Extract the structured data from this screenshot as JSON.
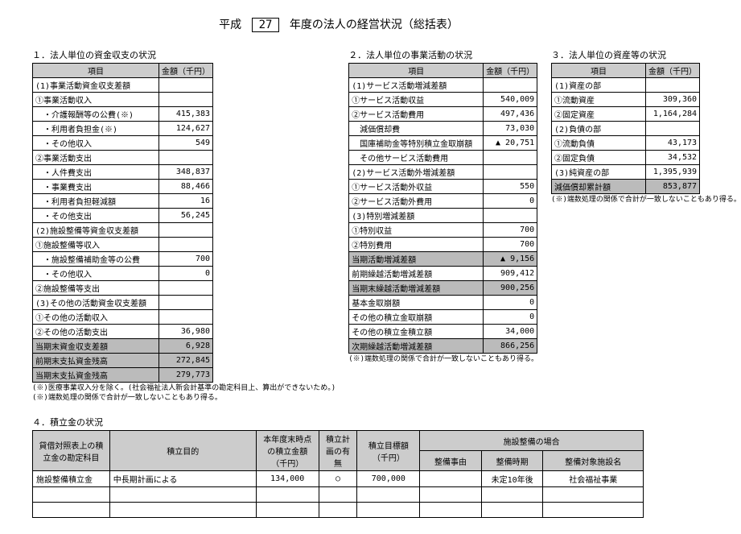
{
  "title": {
    "prefix": "平成",
    "year": "27",
    "suffix": "年度の法人の経営状況（総括表）"
  },
  "section1": {
    "heading": "１．法人単位の資金収支の状況",
    "col1": "項目",
    "col2": "金額（千円）",
    "rows": [
      {
        "label": "(1)事業活動資金収支差額",
        "val": "",
        "shade": false
      },
      {
        "label": "①事業活動収入",
        "val": "",
        "shade": false
      },
      {
        "label": "　・介護報酬等の公費(※)",
        "val": "415,383",
        "shade": false
      },
      {
        "label": "　・利用者負担金(※)",
        "val": "124,627",
        "shade": false
      },
      {
        "label": "　・その他収入",
        "val": "549",
        "shade": false
      },
      {
        "label": "②事業活動支出",
        "val": "",
        "shade": false
      },
      {
        "label": "　・人件費支出",
        "val": "348,837",
        "shade": false
      },
      {
        "label": "　・事業費支出",
        "val": "88,466",
        "shade": false
      },
      {
        "label": "　・利用者負担軽減額",
        "val": "16",
        "shade": false
      },
      {
        "label": "　・その他支出",
        "val": "56,245",
        "shade": false
      },
      {
        "label": "(2)施設整備等資金収支差額",
        "val": "",
        "shade": false
      },
      {
        "label": "①施設整備等収入",
        "val": "",
        "shade": false
      },
      {
        "label": "　・施設整備補助金等の公費",
        "val": "700",
        "shade": false
      },
      {
        "label": "　・その他収入",
        "val": "0",
        "shade": false
      },
      {
        "label": "②施設整備等支出",
        "val": "",
        "shade": false
      },
      {
        "label": "(3)その他の活動資金収支差額",
        "val": "",
        "shade": false
      },
      {
        "label": "①その他の活動収入",
        "val": "",
        "shade": false
      },
      {
        "label": "②その他の活動支出",
        "val": "36,980",
        "shade": false
      },
      {
        "label": "当期末資金収支差額",
        "val": "6,928",
        "shade": true
      },
      {
        "label": "前期末支払資金残高",
        "val": "272,845",
        "shade": true
      },
      {
        "label": "当期末支払資金残高",
        "val": "279,773",
        "shade": true
      }
    ],
    "notes": [
      "(※)医療事業収入分を除く。(社会福祉法人新会計基準の勘定科目上、算出ができないため。)",
      "(※)端数処理の関係で合計が一致しないこともあり得る。"
    ]
  },
  "section2": {
    "heading": "２．法人単位の事業活動の状況",
    "col1": "項目",
    "col2": "金額（千円）",
    "rows": [
      {
        "label": "(1)サービス活動増減差額",
        "val": "",
        "shade": false
      },
      {
        "label": "①サービス活動収益",
        "val": "540,009",
        "shade": false
      },
      {
        "label": "②サービス活動費用",
        "val": "497,436",
        "shade": false
      },
      {
        "label": "　減価償却費",
        "val": "73,030",
        "shade": false
      },
      {
        "label": "　国庫補助金等特別積立金取崩額",
        "val": "▲ 20,751",
        "shade": false
      },
      {
        "label": "　その他サービス活動費用",
        "val": "",
        "shade": false
      },
      {
        "label": "(2)サービス活動外増減差額",
        "val": "",
        "shade": false
      },
      {
        "label": "①サービス活動外収益",
        "val": "550",
        "shade": false
      },
      {
        "label": "②サービス活動外費用",
        "val": "0",
        "shade": false
      },
      {
        "label": "(3)特別増減差額",
        "val": "",
        "shade": false
      },
      {
        "label": "①特別収益",
        "val": "700",
        "shade": false
      },
      {
        "label": "②特別費用",
        "val": "700",
        "shade": false
      },
      {
        "label": "当期活動増減差額",
        "val": "▲ 9,156",
        "shade": true
      },
      {
        "label": "前期繰越活動増減差額",
        "val": "909,412",
        "shade": false
      },
      {
        "label": "当期末繰越活動増減差額",
        "val": "900,256",
        "shade": true
      },
      {
        "label": "基本金取崩額",
        "val": "0",
        "shade": false
      },
      {
        "label": "その他の積立金取崩額",
        "val": "0",
        "shade": false
      },
      {
        "label": "その他の積立金積立額",
        "val": "34,000",
        "shade": false
      },
      {
        "label": "次期繰越活動増減差額",
        "val": "866,256",
        "shade": true
      }
    ],
    "note": "(※)端数処理の関係で合計が一致しないこともあり得る。"
  },
  "section3": {
    "heading": "３．法人単位の資産等の状況",
    "col1": "項目",
    "col2": "金額（千円）",
    "rows": [
      {
        "label": "(1)資産の部",
        "val": "",
        "shade": false
      },
      {
        "label": "①流動資産",
        "val": "309,360",
        "shade": false
      },
      {
        "label": "②固定資産",
        "val": "1,164,284",
        "shade": false
      },
      {
        "label": "(2)負債の部",
        "val": "",
        "shade": false
      },
      {
        "label": "①流動負債",
        "val": "43,173",
        "shade": false
      },
      {
        "label": "②固定負債",
        "val": "34,532",
        "shade": false
      },
      {
        "label": "(3)純資産の部",
        "val": "1,395,939",
        "shade": false
      },
      {
        "label": "減価償却累計額",
        "val": "853,877",
        "shade": true
      }
    ],
    "note": "(※)端数処理の関係で合計が一致しないこともあり得る。"
  },
  "section4": {
    "heading": "４．積立金の状況",
    "headers": {
      "h1": "貸借対照表上の積立金の勘定科目",
      "h2": "積立目的",
      "h3": "本年度末時点の積立金額（千円）",
      "h4": "積立計画の有無",
      "h5": "積立目標額（千円）",
      "h6": "施設整備の場合",
      "h6a": "整備事由",
      "h6b": "整備時期",
      "h6c": "整備対象施設名"
    },
    "row": {
      "c1": "施設整備積立金",
      "c2": "中長期計画による",
      "c3": "134,000",
      "c4": "○",
      "c5": "700,000",
      "c6a": "",
      "c6b": "未定10年後",
      "c6c": "社会福祉事業"
    }
  }
}
